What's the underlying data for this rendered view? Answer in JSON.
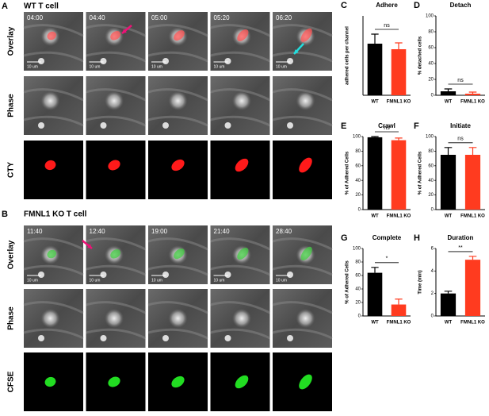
{
  "panel_a": {
    "letter": "A",
    "title": "WT T cell",
    "times": [
      "04:00",
      "04:40",
      "05:00",
      "05:20",
      "06:20"
    ],
    "rows": [
      "Overlay",
      "Phase",
      "CTY"
    ],
    "scale_bar": "10 um"
  },
  "panel_b": {
    "letter": "B",
    "title": "FMNL1 KO T cell",
    "times": [
      "11:40",
      "12:40",
      "19:00",
      "21:40",
      "28:40"
    ],
    "rows": [
      "Overlay",
      "Phase",
      "CFSE"
    ],
    "scale_bar": "10 um"
  },
  "chart_data": [
    {
      "type": "bar",
      "letter": "C",
      "title": "Adhere",
      "y_label": "adhered cells per channel",
      "categories": [
        "WT",
        "FMNL1 KO"
      ],
      "values": [
        65,
        58
      ],
      "errors": [
        12,
        8
      ],
      "colors": [
        "#000000",
        "#ff3b1f"
      ],
      "ylim": [
        0,
        100
      ],
      "annotation": "ns"
    },
    {
      "type": "bar",
      "letter": "D",
      "title": "Detach",
      "y_label": "% detached cells",
      "categories": [
        "WT",
        "FMNL1 KO"
      ],
      "values": [
        5,
        2
      ],
      "errors": [
        3,
        2
      ],
      "colors": [
        "#000000",
        "#ff3b1f"
      ],
      "ylim": [
        0,
        100
      ],
      "yticks": [
        0,
        20,
        40,
        60,
        80,
        100
      ],
      "annotation": "ns"
    },
    {
      "type": "bar",
      "letter": "E",
      "title": "Crawl",
      "y_label": "% of Adhered Cells",
      "categories": [
        "WT",
        "FMNL1 KO"
      ],
      "values": [
        99,
        95
      ],
      "errors": [
        1,
        3
      ],
      "colors": [
        "#000000",
        "#ff3b1f"
      ],
      "ylim": [
        0,
        100
      ],
      "yticks": [
        0,
        20,
        40,
        60,
        80,
        100
      ],
      "annotation": "ns"
    },
    {
      "type": "bar",
      "letter": "F",
      "title": "Initiate",
      "y_label": "% of Adhered Cells",
      "categories": [
        "WT",
        "FMNL1 KO"
      ],
      "values": [
        75,
        75
      ],
      "errors": [
        10,
        10
      ],
      "colors": [
        "#000000",
        "#ff3b1f"
      ],
      "ylim": [
        0,
        100
      ],
      "yticks": [
        0,
        20,
        40,
        60,
        80,
        100
      ],
      "annotation": "ns"
    },
    {
      "type": "bar",
      "letter": "G",
      "title": "Complete",
      "y_label": "% of Adhered Cells",
      "categories": [
        "WT",
        "FMNL1 KO"
      ],
      "values": [
        64,
        17
      ],
      "errors": [
        8,
        8
      ],
      "colors": [
        "#000000",
        "#ff3b1f"
      ],
      "ylim": [
        0,
        100
      ],
      "yticks": [
        0,
        20,
        40,
        60,
        80,
        100
      ],
      "annotation": "*"
    },
    {
      "type": "bar",
      "letter": "H",
      "title": "Duration",
      "y_label": "Time (min)",
      "categories": [
        "WT",
        "FMNL1 KO"
      ],
      "values": [
        2.0,
        5.0
      ],
      "errors": [
        0.2,
        0.3
      ],
      "colors": [
        "#000000",
        "#ff3b1f"
      ],
      "ylim": [
        0,
        6
      ],
      "yticks": [
        0,
        2,
        4,
        6
      ],
      "annotation": "**"
    }
  ]
}
